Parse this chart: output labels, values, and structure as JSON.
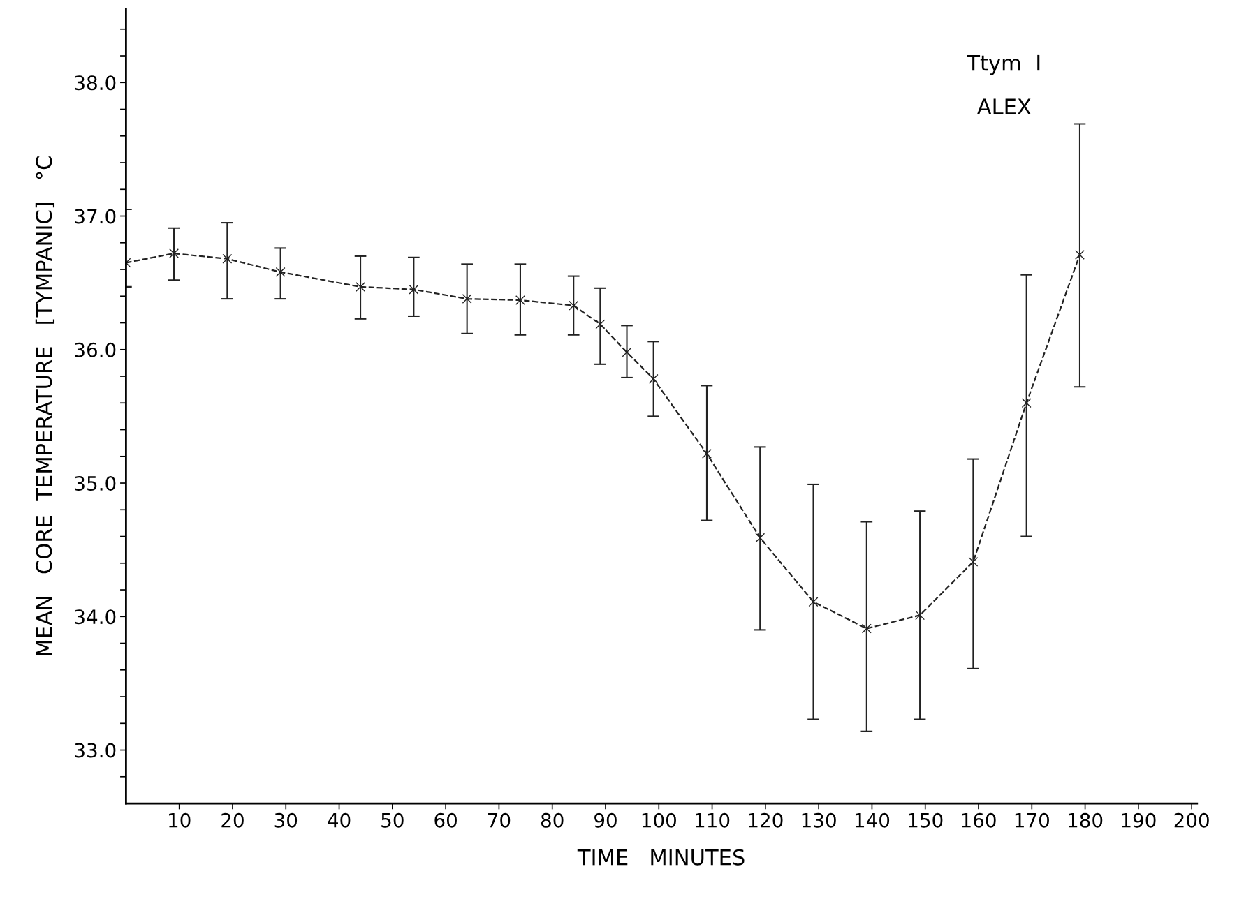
{
  "chart_data": {
    "type": "line",
    "xlabel": "TIME   MINUTES",
    "ylabel": "MEAN   CORE  TEMPERATURE   [TYMPANIC]   °C",
    "annotations": [
      "Ttym  I",
      "ALEX"
    ],
    "x": [
      0,
      9,
      19,
      29,
      44,
      54,
      64,
      74,
      84,
      89,
      94,
      99,
      109,
      119,
      129,
      139,
      149,
      159,
      169,
      179
    ],
    "series": [
      {
        "color": "#222222",
        "values": [
          36.65,
          36.72,
          36.68,
          36.58,
          36.47,
          36.45,
          36.38,
          36.37,
          36.33,
          36.19,
          35.98,
          35.78,
          35.22,
          34.59,
          34.11,
          33.91,
          34.01,
          34.41,
          35.6,
          36.71
        ],
        "errors": [
          [
            36.47,
            37.05
          ],
          [
            36.52,
            36.91
          ],
          [
            36.38,
            36.95
          ],
          [
            36.38,
            36.76
          ],
          [
            36.23,
            36.7
          ],
          [
            36.25,
            36.69
          ],
          [
            36.12,
            36.64
          ],
          [
            36.11,
            36.64
          ],
          [
            36.11,
            36.55
          ],
          [
            35.89,
            36.46
          ],
          [
            35.79,
            36.18
          ],
          [
            35.5,
            36.06
          ],
          [
            34.72,
            35.73
          ],
          [
            33.9,
            35.27
          ],
          [
            33.23,
            34.99
          ],
          [
            33.14,
            34.71
          ],
          [
            33.23,
            34.79
          ],
          [
            33.61,
            35.18
          ],
          [
            34.6,
            36.56
          ],
          [
            35.72,
            37.69
          ]
        ]
      }
    ],
    "marker": "cross",
    "line_style": "dashed",
    "grid": false,
    "legend": false,
    "xlim": [
      0,
      201
    ],
    "ylim": [
      32.6,
      38.55
    ],
    "xticks": [
      10,
      20,
      30,
      40,
      50,
      60,
      70,
      80,
      90,
      100,
      110,
      120,
      130,
      140,
      150,
      160,
      170,
      180,
      190,
      200
    ],
    "yticks": [
      {
        "value": 32.8,
        "label": null
      },
      {
        "value": 33.0,
        "label": "33.0"
      },
      {
        "value": 33.2,
        "label": null
      },
      {
        "value": 33.4,
        "label": null
      },
      {
        "value": 33.6,
        "label": null
      },
      {
        "value": 33.8,
        "label": null
      },
      {
        "value": 34.0,
        "label": "34.0"
      },
      {
        "value": 34.2,
        "label": null
      },
      {
        "value": 34.4,
        "label": null
      },
      {
        "value": 34.6,
        "label": null
      },
      {
        "value": 34.8,
        "label": null
      },
      {
        "value": 35.0,
        "label": "35.0"
      },
      {
        "value": 35.2,
        "label": null
      },
      {
        "value": 35.4,
        "label": null
      },
      {
        "value": 35.6,
        "label": null
      },
      {
        "value": 35.8,
        "label": null
      },
      {
        "value": 36.0,
        "label": "36.0"
      },
      {
        "value": 36.2,
        "label": null
      },
      {
        "value": 36.4,
        "label": null
      },
      {
        "value": 36.6,
        "label": null
      },
      {
        "value": 36.8,
        "label": null
      },
      {
        "value": 37.0,
        "label": "37.0"
      },
      {
        "value": 37.2,
        "label": null
      },
      {
        "value": 37.4,
        "label": null
      },
      {
        "value": 37.6,
        "label": null
      },
      {
        "value": 37.8,
        "label": null
      },
      {
        "value": 38.0,
        "label": "38.0"
      },
      {
        "value": 38.2,
        "label": null
      },
      {
        "value": 38.4,
        "label": null
      }
    ]
  }
}
